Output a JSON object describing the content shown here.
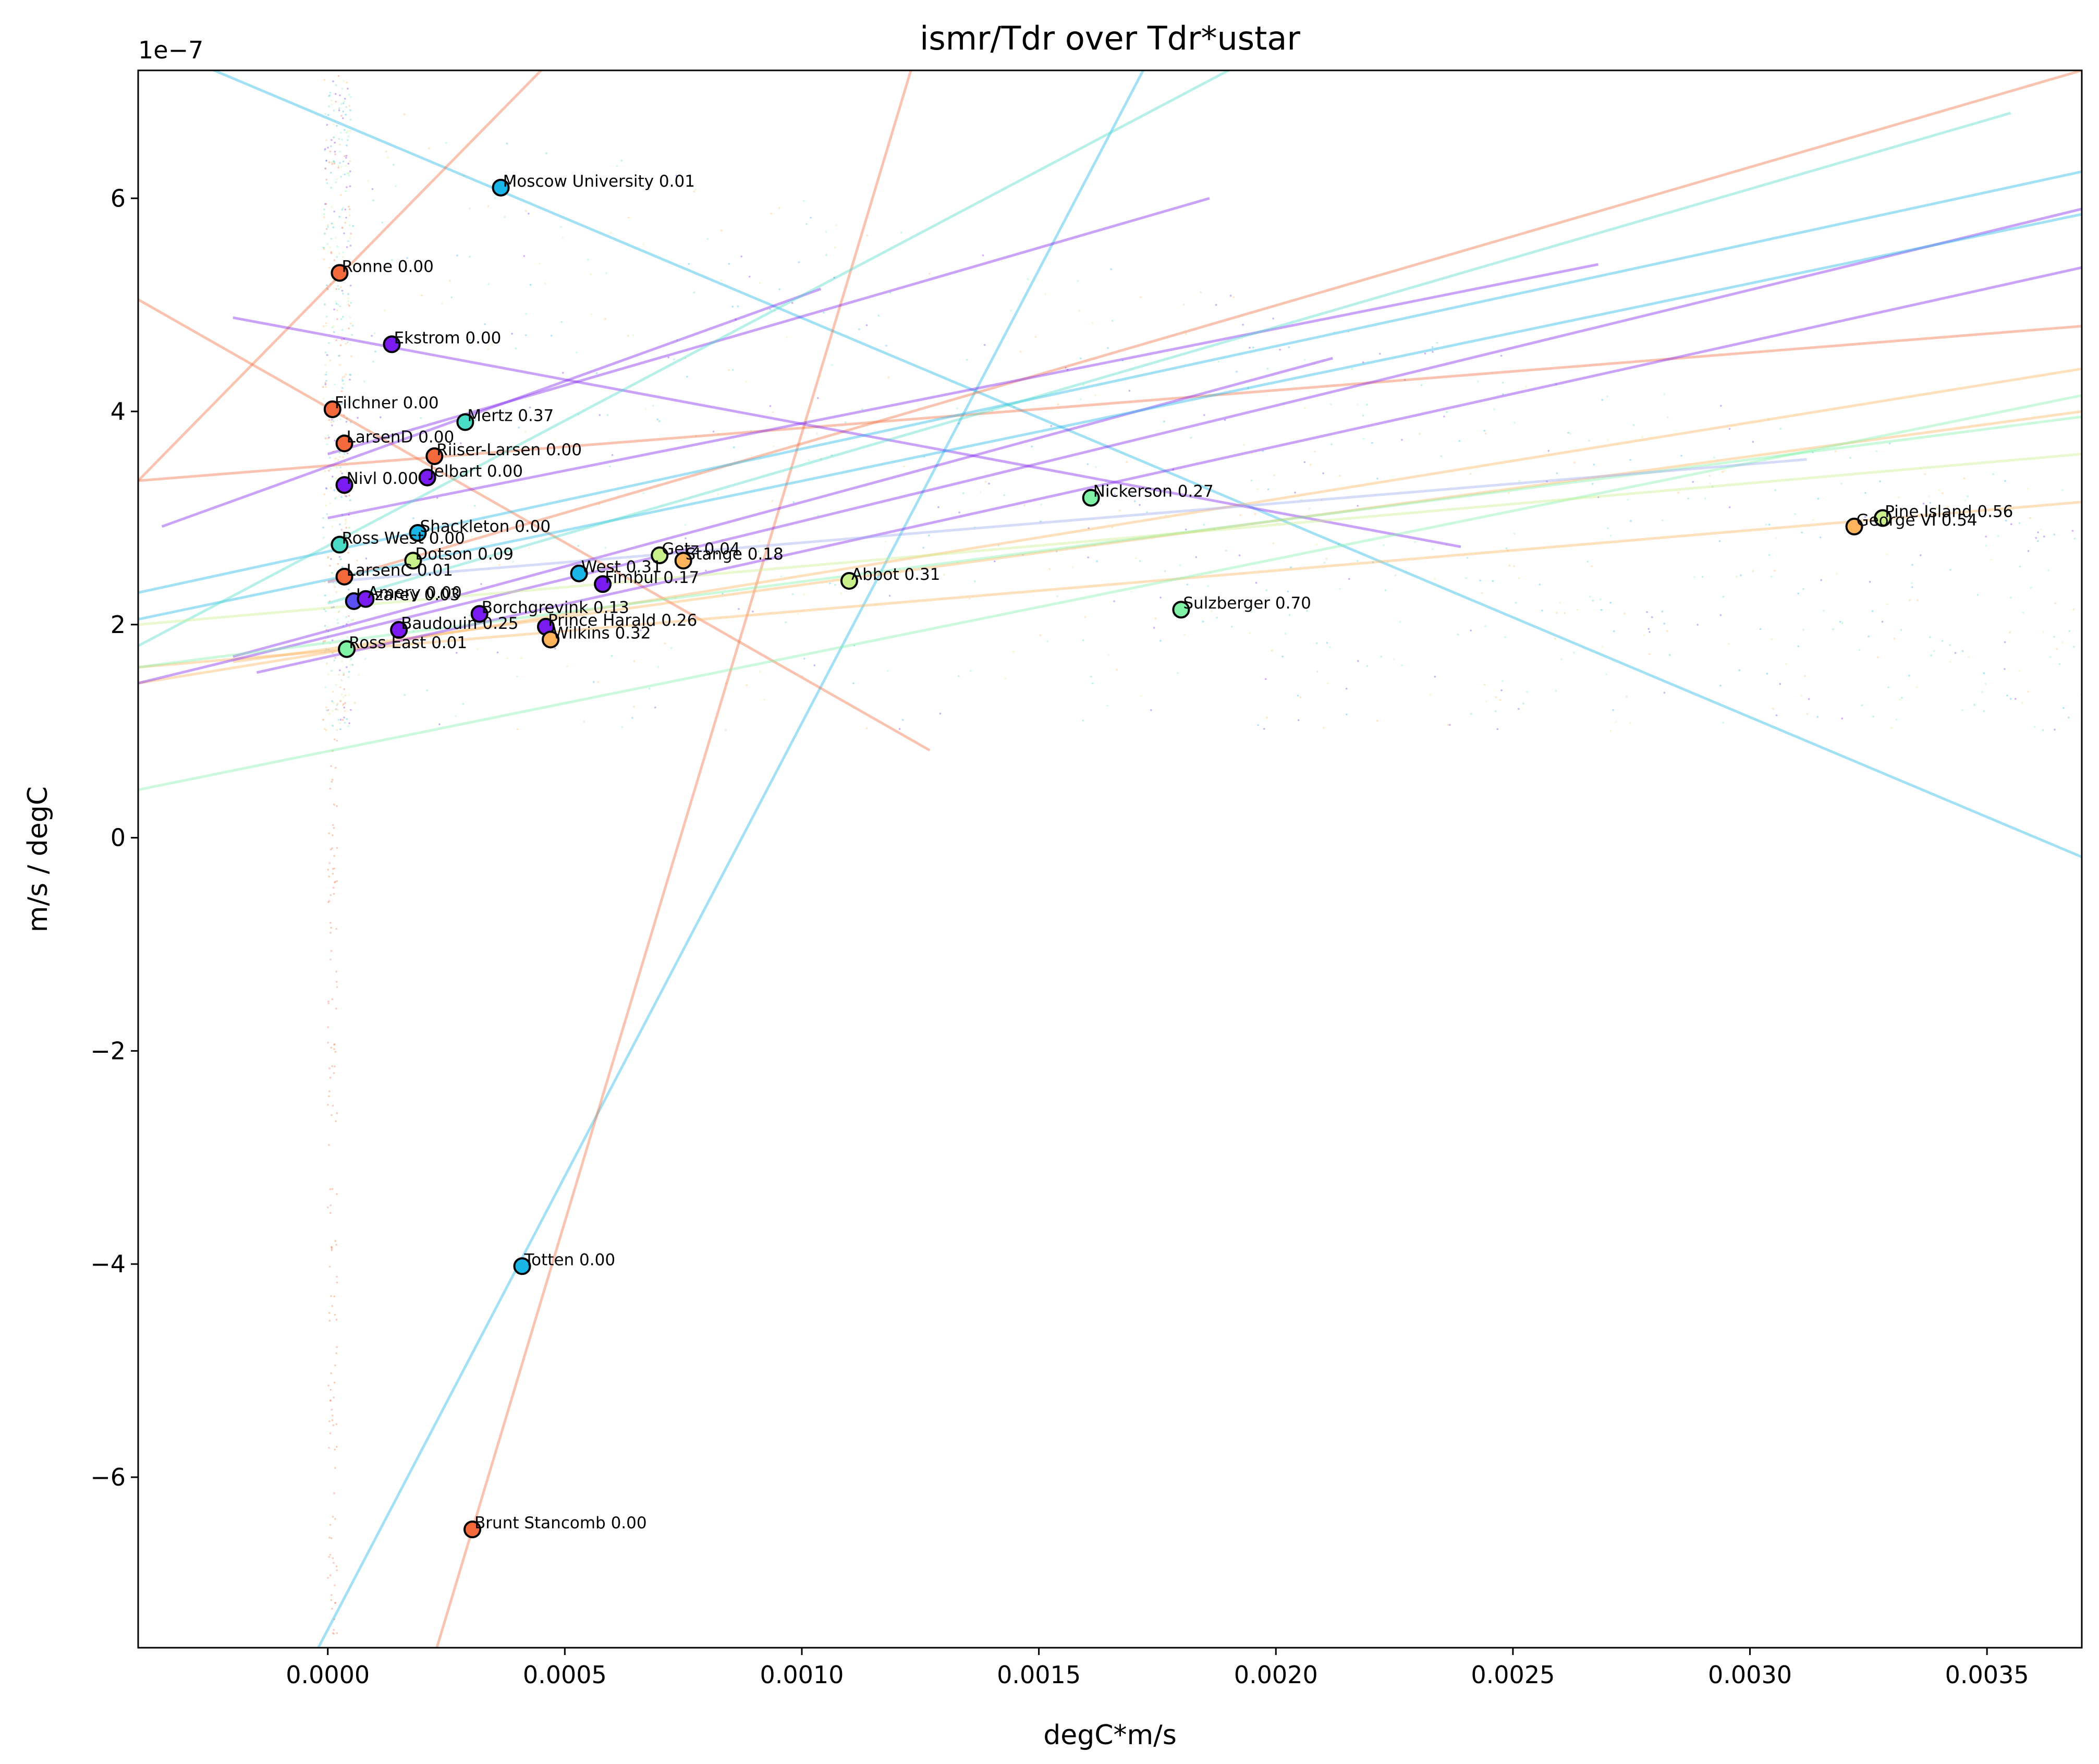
{
  "chart_data": {
    "type": "scatter",
    "title": "ismr/Tdr over Tdr*ustar",
    "xlabel": "degC*m/s",
    "ylabel": "m/s / degC",
    "y_offset_label": "1e−7",
    "xlim": [
      -0.0004,
      0.0037
    ],
    "ylim": [
      -7.6,
      7.2
    ],
    "x_ticks": [
      0.0,
      0.0005,
      0.001,
      0.0015,
      0.002,
      0.0025,
      0.003,
      0.0035
    ],
    "x_tick_labels": [
      "0.0000",
      "0.0005",
      "0.0010",
      "0.0015",
      "0.0020",
      "0.0025",
      "0.0030",
      "0.0035"
    ],
    "y_ticks": [
      6,
      4,
      2,
      0,
      -2,
      -4,
      -6
    ],
    "y_tick_labels": [
      "6",
      "4",
      "2",
      "0",
      "−2",
      "−4",
      "−6"
    ],
    "y_unit_scale": "1e-7",
    "grid": false,
    "legend": "none",
    "points": [
      {
        "label": "Moscow University 0.01",
        "x": 0.000365,
        "y": 6.1,
        "color": "#1ab6e8"
      },
      {
        "label": "Ronne 0.00",
        "x": 2.5e-05,
        "y": 5.3,
        "color": "#f46a3c"
      },
      {
        "label": "Ekstrom 0.00",
        "x": 0.000135,
        "y": 4.63,
        "color": "#7a1bf2"
      },
      {
        "label": "Filchner 0.00",
        "x": 1e-05,
        "y": 4.02,
        "color": "#f46a3c"
      },
      {
        "label": "Mertz 0.37",
        "x": 0.00029,
        "y": 3.9,
        "color": "#4adbc7"
      },
      {
        "label": "LarsenD 0.00",
        "x": 3.5e-05,
        "y": 3.7,
        "color": "#f46a3c"
      },
      {
        "label": "Riiser-Larsen 0.00",
        "x": 0.000225,
        "y": 3.58,
        "color": "#f46a3c"
      },
      {
        "label": "Jelbart 0.00",
        "x": 0.00021,
        "y": 3.38,
        "color": "#7a1bf2"
      },
      {
        "label": "Nivl 0.00",
        "x": 3.5e-05,
        "y": 3.31,
        "color": "#7a1bf2"
      },
      {
        "label": "Nickerson 0.27",
        "x": 0.00161,
        "y": 3.19,
        "color": "#7ff2a6"
      },
      {
        "label": "Pine Island 0.56",
        "x": 0.00328,
        "y": 3.0,
        "color": "#c9f08a"
      },
      {
        "label": "George VI 0.54",
        "x": 0.00322,
        "y": 2.92,
        "color": "#ffb45c"
      },
      {
        "label": "Shackleton 0.00",
        "x": 0.00019,
        "y": 2.86,
        "color": "#1ab6e8"
      },
      {
        "label": "Ross West 0.00",
        "x": 2.5e-05,
        "y": 2.75,
        "color": "#4adbc7"
      },
      {
        "label": "Getz 0.04",
        "x": 0.0007,
        "y": 2.65,
        "color": "#c9f08a"
      },
      {
        "label": "Stange 0.18",
        "x": 0.00075,
        "y": 2.6,
        "color": "#ffb45c"
      },
      {
        "label": "Dotson 0.09",
        "x": 0.00018,
        "y": 2.6,
        "color": "#c9f08a"
      },
      {
        "label": "West 0.31",
        "x": 0.00053,
        "y": 2.48,
        "color": "#1ab6e8"
      },
      {
        "label": "LarsenC 0.01",
        "x": 3.5e-05,
        "y": 2.45,
        "color": "#f46a3c"
      },
      {
        "label": "Abbot 0.31",
        "x": 0.0011,
        "y": 2.41,
        "color": "#c9f08a"
      },
      {
        "label": "Fimbul 0.17",
        "x": 0.00058,
        "y": 2.38,
        "color": "#7a1bf2"
      },
      {
        "label": "Lazarev 0.03",
        "x": 5.5e-05,
        "y": 2.22,
        "color": "#5a4ff0"
      },
      {
        "label": "Amery 0.00",
        "x": 8e-05,
        "y": 2.24,
        "color": "#7a1bf2"
      },
      {
        "label": "Sulzberger 0.70",
        "x": 0.0018,
        "y": 2.14,
        "color": "#7ff2a6"
      },
      {
        "label": "Borchgrevink 0.13",
        "x": 0.00032,
        "y": 2.1,
        "color": "#7a1bf2"
      },
      {
        "label": "Prince Harald 0.26",
        "x": 0.00046,
        "y": 1.98,
        "color": "#7a1bf2"
      },
      {
        "label": "Baudouin 0.25",
        "x": 0.00015,
        "y": 1.95,
        "color": "#7a1bf2"
      },
      {
        "label": "Wilkins 0.32",
        "x": 0.00047,
        "y": 1.86,
        "color": "#ffb45c"
      },
      {
        "label": "Ross East 0.01",
        "x": 4e-05,
        "y": 1.77,
        "color": "#7ff2a6"
      },
      {
        "label": "Totten 0.00",
        "x": 0.00041,
        "y": -4.02,
        "color": "#1ab6e8"
      },
      {
        "label": "Brunt Stancomb 0.00",
        "x": 0.000305,
        "y": -6.49,
        "color": "#f46a3c"
      }
    ],
    "fit_lines": [
      {
        "color": "#1ab6e8",
        "x0": -0.0004,
        "y0": 7.5,
        "x1": 0.0037,
        "y1": -0.18
      },
      {
        "color": "#1ab6e8",
        "x0": -2e-05,
        "y0": -7.6,
        "x1": 0.00172,
        "y1": 7.2
      },
      {
        "color": "#f46a3c",
        "x0": 0.00023,
        "y0": -7.6,
        "x1": 0.00123,
        "y1": 7.2
      },
      {
        "color": "#f46a3c",
        "x0": -0.0004,
        "y0": 5.05,
        "x1": 0.00127,
        "y1": 0.82
      },
      {
        "color": "#f46a3c",
        "x0": -0.0004,
        "y0": 3.35,
        "x1": 0.00045,
        "y1": 7.2
      },
      {
        "color": "#f46a3c",
        "x0": -0.0004,
        "y0": 3.35,
        "x1": 0.0037,
        "y1": 4.8
      },
      {
        "color": "#f46a3c",
        "x0": 0.0,
        "y0": 2.4,
        "x1": 0.0037,
        "y1": 7.2
      },
      {
        "color": "#ffb45c",
        "x0": -0.0004,
        "y0": 1.45,
        "x1": 0.0037,
        "y1": 4.4
      },
      {
        "color": "#ffb45c",
        "x0": -0.0004,
        "y0": 1.6,
        "x1": 0.0037,
        "y1": 3.15
      },
      {
        "color": "#ffb45c",
        "x0": -0.0002,
        "y0": 1.65,
        "x1": 0.0037,
        "y1": 4.0
      },
      {
        "color": "#7a1bf2",
        "x0": -0.00035,
        "y0": 2.92,
        "x1": 0.00104,
        "y1": 5.15
      },
      {
        "color": "#7a1bf2",
        "x0": -0.0002,
        "y0": 4.88,
        "x1": 0.00239,
        "y1": 2.73
      },
      {
        "color": "#7a1bf2",
        "x0": -0.0004,
        "y0": 1.45,
        "x1": 0.0037,
        "y1": 5.9
      },
      {
        "color": "#7a1bf2",
        "x0": -0.00015,
        "y0": 1.55,
        "x1": 0.0037,
        "y1": 5.35
      },
      {
        "color": "#7a1bf2",
        "x0": 0.0,
        "y0": 3.6,
        "x1": 0.00186,
        "y1": 6.0
      },
      {
        "color": "#7a1bf2",
        "x0": -0.0002,
        "y0": 1.7,
        "x1": 0.00212,
        "y1": 4.5
      },
      {
        "color": "#7a1bf2",
        "x0": 0.0,
        "y0": 3.0,
        "x1": 0.00268,
        "y1": 5.38
      },
      {
        "color": "#1ab6e8",
        "x0": -0.0004,
        "y0": 2.3,
        "x1": 0.0037,
        "y1": 6.25
      },
      {
        "color": "#1ab6e8",
        "x0": -0.0004,
        "y0": 2.05,
        "x1": 0.0037,
        "y1": 5.85
      },
      {
        "color": "#4adbc7",
        "x0": -0.0004,
        "y0": 1.8,
        "x1": 0.0019,
        "y1": 7.2
      },
      {
        "color": "#4adbc7",
        "x0": 0.0,
        "y0": 2.2,
        "x1": 0.00355,
        "y1": 6.8
      },
      {
        "color": "#7ff2a6",
        "x0": -0.0004,
        "y0": 0.45,
        "x1": 0.0037,
        "y1": 4.15
      },
      {
        "color": "#7ff2a6",
        "x0": -0.0004,
        "y0": 1.6,
        "x1": 0.0037,
        "y1": 3.95
      },
      {
        "color": "#c9f08a",
        "x0": -0.0004,
        "y0": 2.0,
        "x1": 0.0037,
        "y1": 3.6
      },
      {
        "color": "#9aa7f5",
        "x0": 0.0,
        "y0": 2.4,
        "x1": 0.00312,
        "y1": 3.55
      }
    ]
  }
}
